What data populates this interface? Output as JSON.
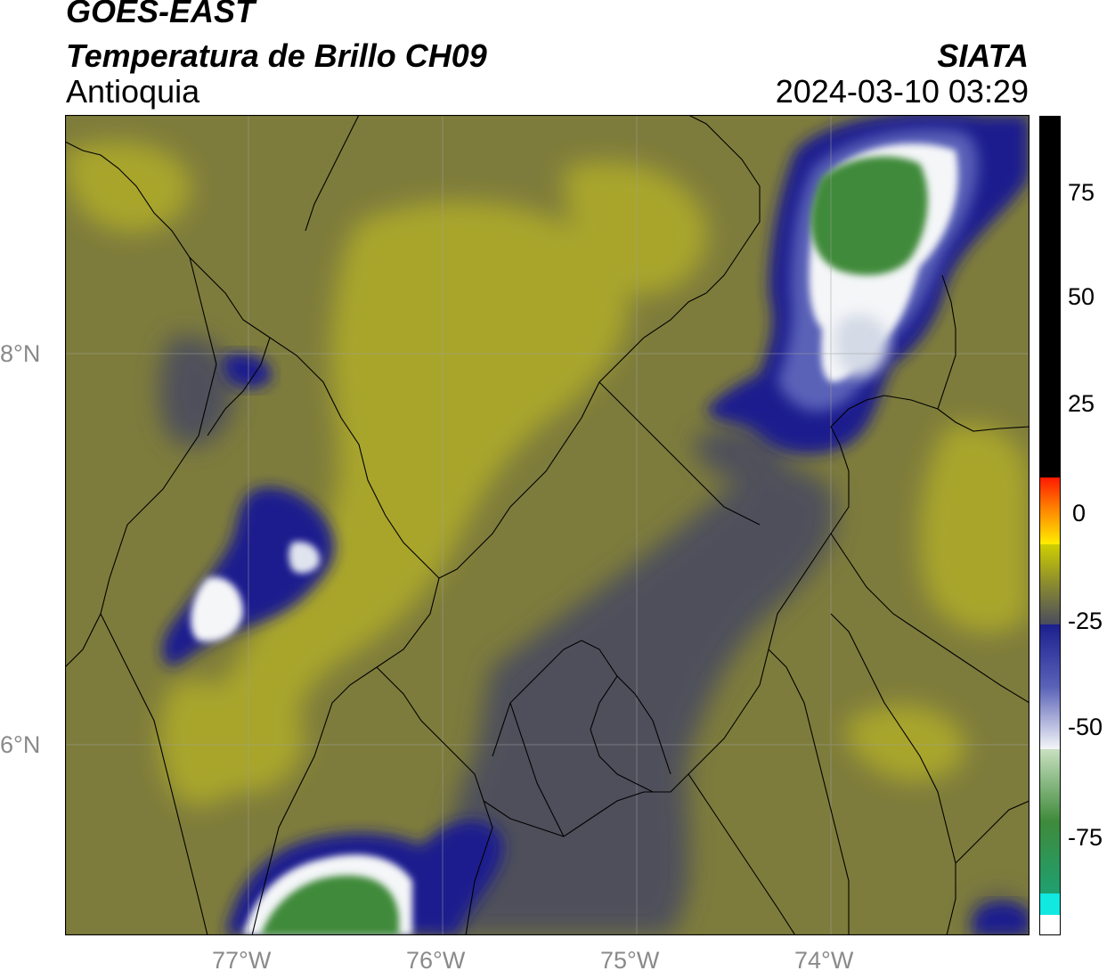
{
  "header": {
    "satellite": "GOES-EAST",
    "product": "Temperatura de Brillo CH09",
    "region": "Antioquia",
    "agency": "SIATA",
    "datetime": "2024-03-10 03:29"
  },
  "axes": {
    "lat_labels": [
      "8°N",
      "6°N"
    ],
    "lon_labels": [
      "77°W",
      "76°W",
      "75°W",
      "74°W"
    ]
  },
  "colorbar": {
    "ticks": [
      "75",
      "50",
      "25",
      "0",
      "-25",
      "-50",
      "-75"
    ]
  },
  "colors": {
    "background_olive": "#7e7c3c",
    "yellow_olive": "#b0ac28",
    "gray_blue": "#4a4c5c",
    "deep_blue": "#1a1f8c",
    "white_core": "#f4f6f8",
    "green_core": "#3f8a3b",
    "red": "#ff1a00",
    "black": "#000000",
    "cyan": "#10e8e0"
  }
}
